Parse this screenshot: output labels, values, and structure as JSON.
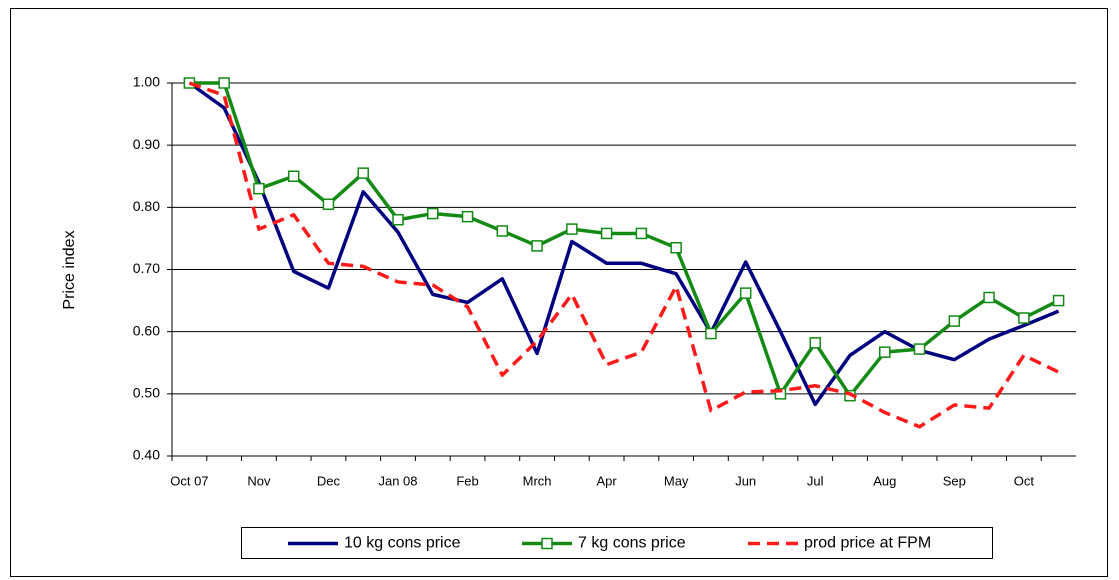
{
  "chart_data": {
    "type": "line",
    "y_label": "Price index",
    "categories": [
      "Oct 07",
      null,
      "Nov",
      null,
      "Dec",
      null,
      "Jan 08",
      null,
      "Feb",
      null,
      "Mrch",
      null,
      "Apr",
      null,
      "May",
      null,
      "Jun",
      null,
      "Jul",
      null,
      "Aug",
      null,
      "Sep",
      null,
      "Oct",
      null
    ],
    "series": [
      {
        "name": "10 kg cons price",
        "color": "#000080",
        "line_style": "solid",
        "values": [
          1.0,
          0.96,
          0.84,
          0.697,
          0.67,
          0.825,
          0.76,
          0.66,
          0.647,
          0.685,
          0.565,
          0.745,
          0.71,
          0.71,
          0.693,
          0.598,
          0.712,
          0.6,
          0.483,
          0.562,
          0.6,
          0.57,
          0.555,
          0.588,
          0.61,
          0.633
        ]
      },
      {
        "name": "7 kg cons price",
        "color": "#138a13",
        "line_style": "solid",
        "marker": "square",
        "values": [
          1.0,
          1.0,
          0.83,
          0.85,
          0.805,
          0.855,
          0.78,
          0.79,
          0.785,
          0.762,
          0.738,
          0.765,
          0.758,
          0.758,
          0.735,
          0.597,
          0.662,
          0.5,
          0.582,
          0.497,
          0.567,
          0.572,
          0.617,
          0.655,
          0.622,
          0.65
        ]
      },
      {
        "name": "prod price at FPM",
        "color": "#ff1a1a",
        "line_style": "dashed",
        "values": [
          1.0,
          0.98,
          0.765,
          0.788,
          0.71,
          0.705,
          0.68,
          0.675,
          0.64,
          0.53,
          0.585,
          0.66,
          0.547,
          0.567,
          0.673,
          0.473,
          0.503,
          0.505,
          0.513,
          0.5,
          0.47,
          0.447,
          0.482,
          0.477,
          0.562,
          0.535
        ]
      }
    ],
    "ylim": [
      0.4,
      1.0
    ],
    "yticks": [
      {
        "value": 0.4,
        "label": "0.40"
      },
      {
        "value": 0.5,
        "label": "0.50"
      },
      {
        "value": 0.6,
        "label": "0.60"
      },
      {
        "value": 0.7,
        "label": "0.70"
      },
      {
        "value": 0.8,
        "label": "0.80"
      },
      {
        "value": 0.9,
        "label": "0.90"
      },
      {
        "value": 1.0,
        "label": "1.00"
      }
    ],
    "grid": true,
    "legend": "bottom"
  }
}
